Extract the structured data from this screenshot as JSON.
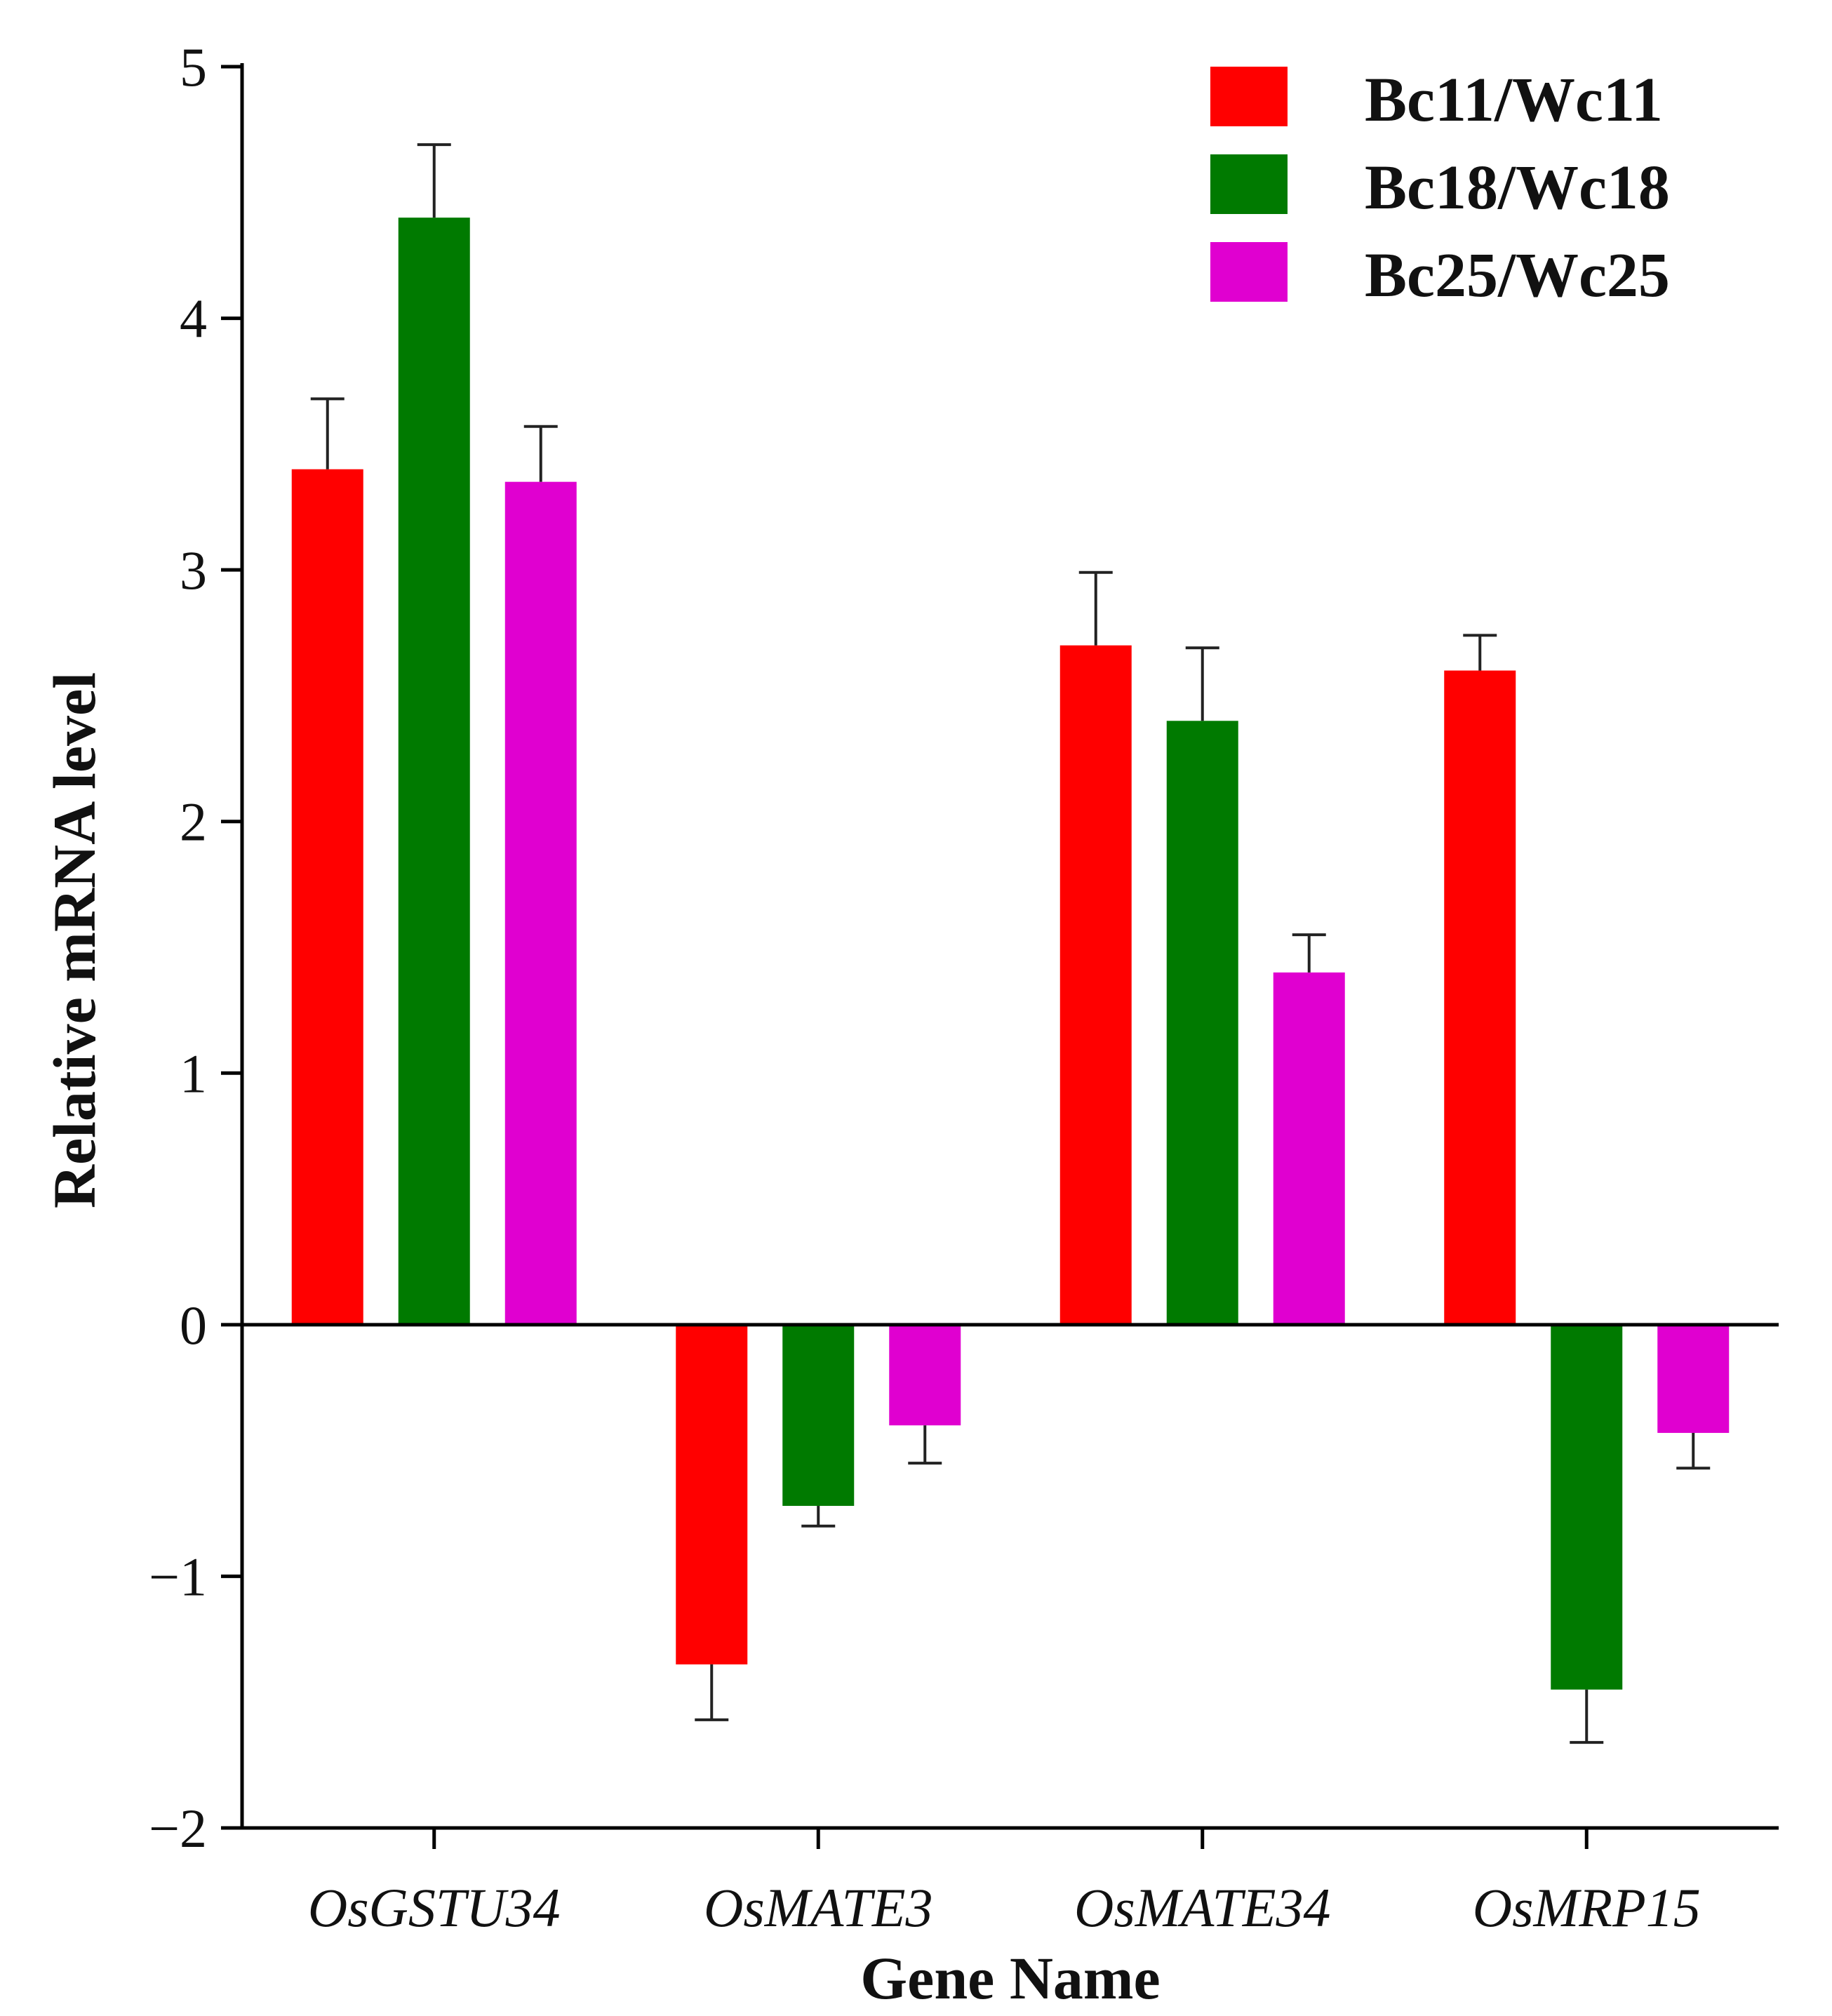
{
  "chart_data": {
    "type": "bar",
    "title": "",
    "xlabel": "Gene Name",
    "ylabel": "Relative mRNA level",
    "ylim": [
      -2,
      5
    ],
    "yticks": [
      5,
      4,
      3,
      2,
      1,
      0,
      -1,
      -2
    ],
    "ytick_labels": [
      "5",
      "4",
      "3",
      "2",
      "1",
      "0",
      "−1",
      "−2"
    ],
    "categories": [
      "OsGSTU34",
      "OsMATE3",
      "OsMATE34",
      "OsMRP15"
    ],
    "legend_position": "top-right",
    "series": [
      {
        "name": "Bc11/Wc11",
        "color": "#ff0000",
        "values": [
          3.4,
          -1.35,
          2.7,
          2.6
        ],
        "errors": [
          0.28,
          0.22,
          0.29,
          0.14
        ]
      },
      {
        "name": "Bc18/Wc18",
        "color": "#007a00",
        "values": [
          4.4,
          -0.72,
          2.4,
          -1.45
        ],
        "errors": [
          0.29,
          0.08,
          0.29,
          0.21
        ]
      },
      {
        "name": "Bc25/Wc25",
        "color": "#e000d0",
        "values": [
          3.35,
          -0.4,
          1.4,
          -0.43
        ],
        "errors": [
          0.22,
          0.15,
          0.15,
          0.14
        ]
      }
    ]
  }
}
